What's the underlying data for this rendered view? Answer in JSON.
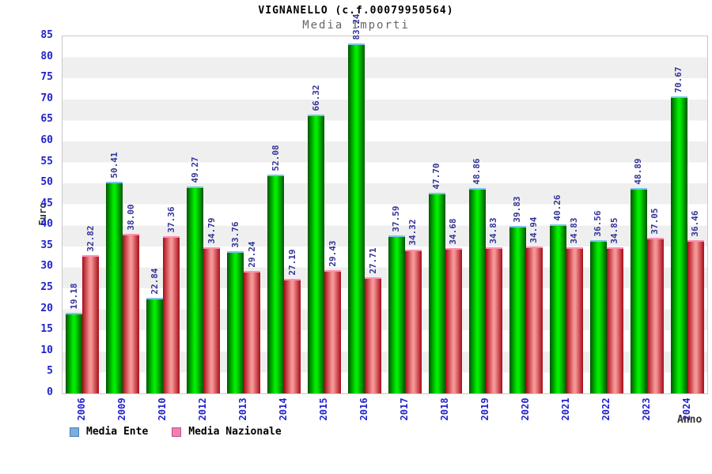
{
  "header": {
    "title": "VIGNANELLO (c.f.00079950564)",
    "subtitle": "Media Importi"
  },
  "axis": {
    "y_label": "Euro",
    "x_label": "Anno"
  },
  "legend": {
    "items": [
      {
        "label": "Media Ente",
        "fill": "#79aede",
        "border": "#4a7fb5"
      },
      {
        "label": "Media Nazionale",
        "fill": "#ef82b0",
        "border": "#bb5585"
      }
    ]
  },
  "chart_data": {
    "type": "bar",
    "title": "VIGNANELLO (c.f.00079950564)",
    "subtitle": "Media Importi",
    "xlabel": "Anno",
    "ylabel": "Euro",
    "ylim": [
      0,
      85
    ],
    "ytick_step": 5,
    "grid": "alternating 5-unit horizontal bands #efefef/#ffffff",
    "legend_position": "bottom-left",
    "categories": [
      "2006",
      "2009",
      "2010",
      "2012",
      "2013",
      "2014",
      "2015",
      "2016",
      "2017",
      "2018",
      "2019",
      "2020",
      "2021",
      "2022",
      "2023",
      "2024"
    ],
    "series": [
      {
        "name": "Media Ente",
        "values": [
          19.18,
          50.41,
          22.84,
          49.27,
          33.76,
          52.08,
          66.32,
          83.24,
          37.59,
          47.7,
          48.86,
          39.83,
          40.26,
          36.56,
          48.89,
          70.67
        ],
        "labels": [
          "19.18",
          "50.41",
          "22.84",
          "49.27",
          "33.76",
          "52.08",
          "66.32",
          "83.24",
          "37.59",
          "47.70",
          "48.86",
          "39.83",
          "40.26",
          "36.56",
          "48.89",
          "70.67"
        ],
        "bar_edge_color": "#005500",
        "bar_center_color": "#00ee00",
        "cap_color": "#7cc6e8"
      },
      {
        "name": "Media Nazionale",
        "values": [
          32.82,
          38.0,
          37.36,
          34.79,
          29.24,
          27.19,
          29.43,
          27.71,
          34.32,
          34.68,
          34.83,
          34.94,
          34.83,
          34.85,
          37.05,
          36.46
        ],
        "labels": [
          "32.82",
          "38.00",
          "37.36",
          "34.79",
          "29.24",
          "27.19",
          "29.43",
          "27.71",
          "34.32",
          "34.68",
          "34.83",
          "34.94",
          "34.83",
          "34.85",
          "37.05",
          "36.46"
        ],
        "bar_edge_color": "#a80c18",
        "bar_center_color": "#f59595",
        "cap_color": "#ff90b4"
      }
    ]
  },
  "colors": {
    "tick_label": "#2222cc",
    "value_label": "#333399",
    "axis_title": "#333333",
    "subtitle": "#666666",
    "band_gray": "#efefef",
    "plot_border": "#c8c8c8"
  }
}
